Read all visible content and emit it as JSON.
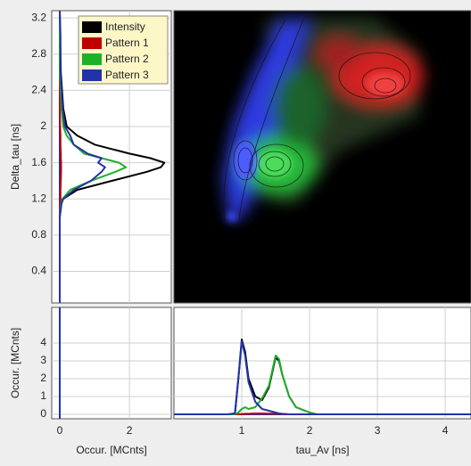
{
  "chart_data": [
    {
      "type": "line",
      "orientation": "horizontal",
      "ylabel": "Delta_tau [ns]",
      "y": [
        0.05,
        1.0,
        1.15,
        1.2,
        1.3,
        1.4,
        1.5,
        1.55,
        1.6,
        1.65,
        1.7,
        1.8,
        1.9,
        2.0,
        2.2,
        2.6,
        3.0,
        3.28
      ],
      "series": [
        {
          "name": "Intensity",
          "color": "#000000",
          "values": [
            0,
            0,
            0.05,
            0.1,
            0.5,
            1.5,
            2.5,
            2.9,
            3.0,
            2.6,
            2.0,
            1.0,
            0.5,
            0.2,
            0.1,
            0.03,
            0.01,
            0
          ]
        },
        {
          "name": "Pattern 1",
          "color": "#c00000",
          "values": [
            0,
            0,
            0,
            0.02,
            0.02,
            0.03,
            0.04,
            0.04,
            0.04,
            0.03,
            0.03,
            0.02,
            0.02,
            0.01,
            0,
            0,
            0,
            0
          ]
        },
        {
          "name": "Pattern 2",
          "color": "#1fb02a",
          "values": [
            0,
            0,
            0.03,
            0.08,
            0.3,
            0.9,
            1.6,
            1.9,
            1.7,
            1.2,
            0.7,
            0.4,
            0.2,
            0.1,
            0.05,
            0,
            0,
            0
          ]
        },
        {
          "name": "Pattern 3",
          "color": "#2233aa",
          "values": [
            0,
            0,
            0.05,
            0.1,
            0.4,
            0.9,
            1.2,
            1.3,
            1.1,
            1.2,
            0.8,
            0.4,
            0.3,
            0.15,
            0.08,
            0.02,
            0.02,
            0
          ]
        }
      ],
      "xlim": [
        -0.23,
        3.2
      ],
      "ylim": [
        0.05,
        3.28
      ],
      "yticks": [
        0.4,
        0.8,
        1.2,
        1.6,
        2.0,
        2.4,
        2.8,
        3.2
      ],
      "grid": true,
      "legend": "upper right"
    },
    {
      "type": "image"
    },
    {
      "type": "line",
      "xlabel": "Occur. [MCnts]",
      "ylabel": "Occur. [MCnts]",
      "xlim": [
        -0.23,
        3.2
      ],
      "ylim": [
        -0.25,
        6
      ],
      "xticks": [
        0,
        2
      ],
      "yticks": [
        0,
        1,
        2,
        3,
        4
      ],
      "grid": true
    },
    {
      "type": "line",
      "xlabel": "tau_Av [ns]",
      "x": [
        0,
        0.8,
        0.9,
        0.95,
        1.0,
        1.05,
        1.1,
        1.2,
        1.3,
        1.4,
        1.5,
        1.55,
        1.6,
        1.7,
        1.8,
        2.0,
        2.1,
        4.38
      ],
      "series": [
        {
          "name": "Intensity",
          "color": "#000000",
          "values": [
            0,
            0,
            0.05,
            2,
            4.2,
            3.5,
            2,
            1,
            0.8,
            1.5,
            3.2,
            3.0,
            2.2,
            1,
            0.4,
            0.1,
            0,
            0
          ]
        },
        {
          "name": "Pattern 1",
          "color": "#c00000",
          "values": [
            0,
            0,
            0,
            0,
            0.02,
            0.03,
            0.03,
            0.05,
            0.05,
            0.04,
            0.03,
            0.03,
            0.02,
            0,
            0,
            0,
            0,
            0
          ]
        },
        {
          "name": "Pattern 2",
          "color": "#1fb02a",
          "values": [
            0,
            0,
            0,
            0.1,
            0.3,
            0.4,
            0.3,
            0.4,
            0.9,
            1.6,
            3.3,
            3.1,
            2.2,
            1,
            0.4,
            0.1,
            0,
            0
          ]
        },
        {
          "name": "Pattern 3",
          "color": "#2233aa",
          "values": [
            0,
            0,
            0.05,
            2,
            4.1,
            3.3,
            1.8,
            0.7,
            0.3,
            0.2,
            0.1,
            0.05,
            0.03,
            0,
            0,
            0,
            0,
            0
          ]
        }
      ],
      "xlim": [
        0,
        4.38
      ],
      "ylim": [
        -0.25,
        6
      ],
      "xticks": [
        1,
        2,
        3,
        4
      ],
      "grid": true
    }
  ]
}
